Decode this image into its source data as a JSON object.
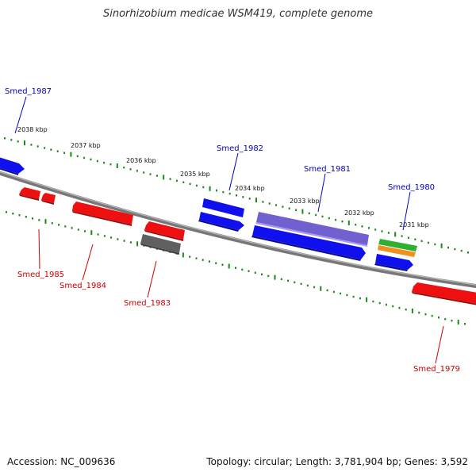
{
  "title": "Sinorhizobium medicae WSM419, complete genome",
  "accession": "Accession: NC_009636",
  "summary": "Topology: circular; Length: 3,781,904 bp; Genes: 3,592",
  "colors": {
    "forward_gene": "#1010ee",
    "reverse_gene": "#ee1010",
    "pseudo_gene": "#606060",
    "rna_gene": "#7060d0",
    "green_feature": "#30b030",
    "orange_feature": "#f09020",
    "ticks": "#1a8a1a",
    "backbone": "#8a8a8a",
    "label_forward": "#0000bb",
    "label_reverse": "#cc0000"
  },
  "ticks": {
    "labels": [
      "2038 kbp",
      "2037 kbp",
      "2036 kbp",
      "2035 kbp",
      "2034 kbp",
      "2033 kbp",
      "2032 kbp",
      "2031 kbp"
    ]
  },
  "genes": {
    "smed_1987": "Smed_1987",
    "smed_1982": "Smed_1982",
    "smed_1981": "Smed_1981",
    "smed_1980": "Smed_1980",
    "smed_1985": "Smed_1985",
    "smed_1984": "Smed_1984",
    "smed_1983": "Smed_1983",
    "smed_1979": "Smed_1979"
  }
}
